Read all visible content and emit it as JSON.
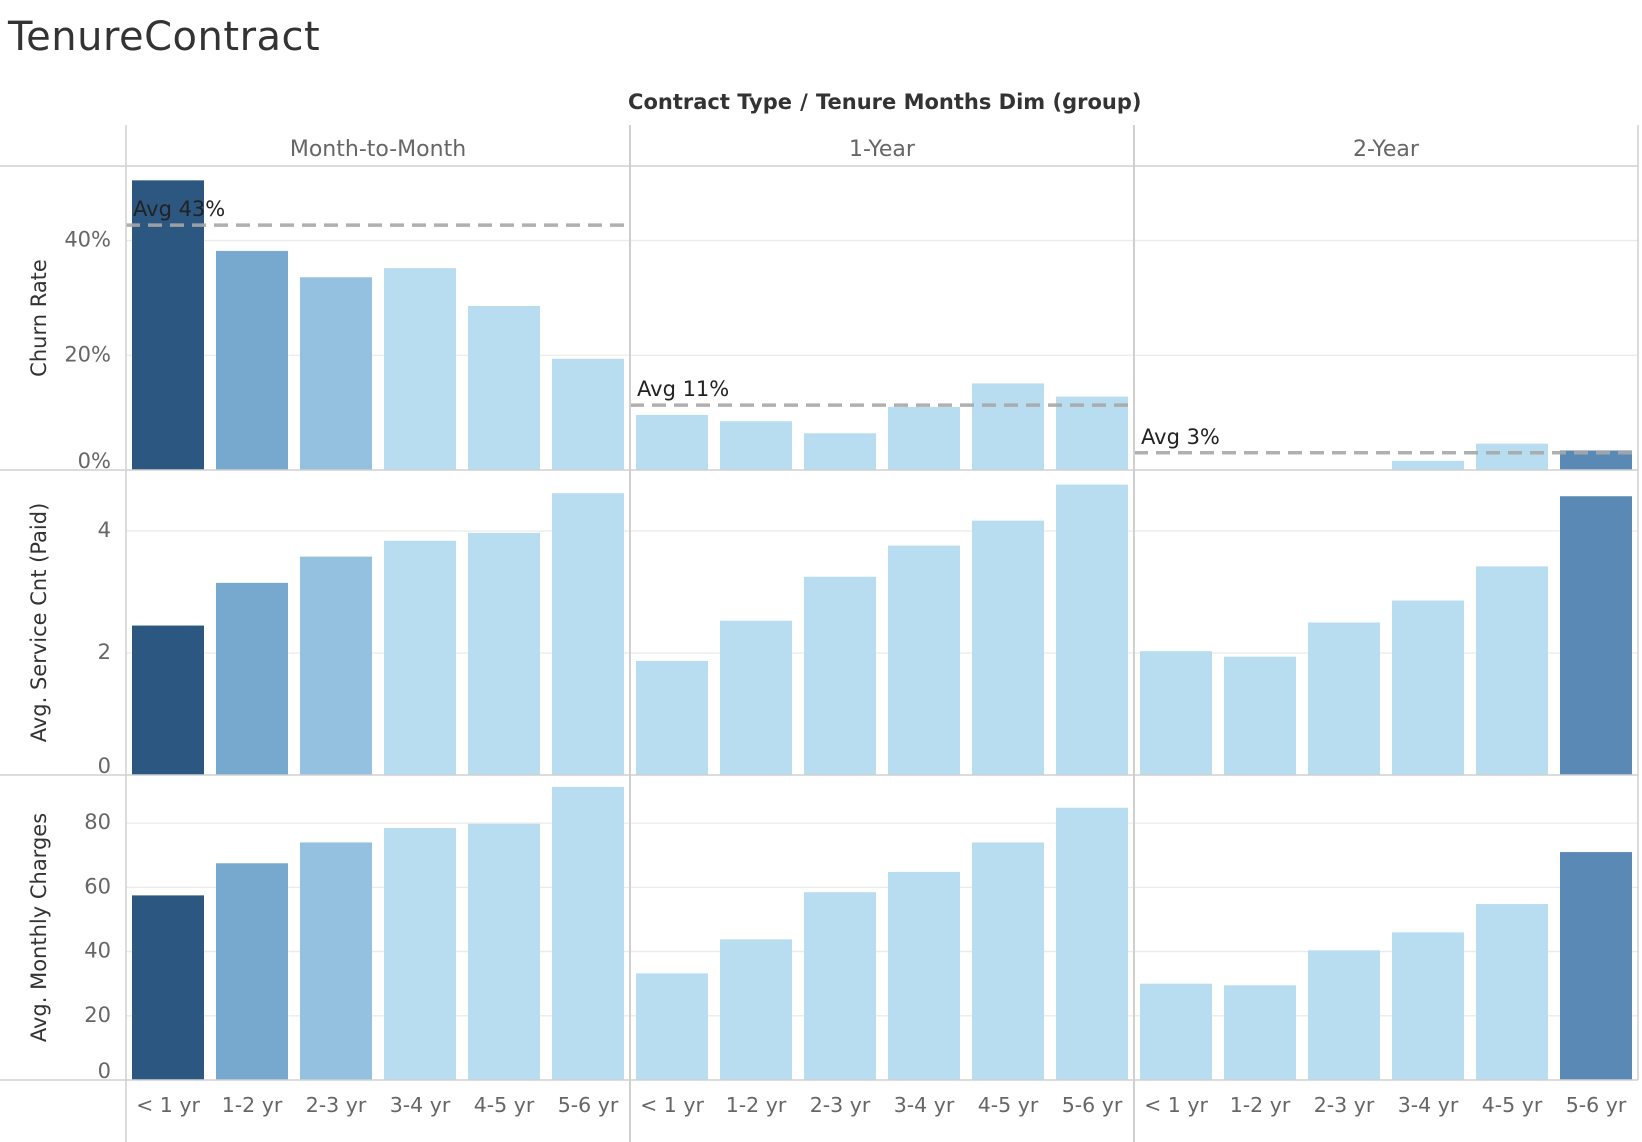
{
  "page_title": "TenureContract",
  "chart_data": {
    "type": "bar",
    "title": "TenureContract",
    "column_header": {
      "dim1": "Contract Type",
      "sep": "/",
      "dim2": "Tenure Months Dim (group)"
    },
    "panels": [
      "Month-to-Month",
      "1-Year",
      "2-Year"
    ],
    "categories": [
      "< 1 yr",
      "1-2 yr",
      "2-3 yr",
      "3-4 yr",
      "4-5 yr",
      "5-6 yr"
    ],
    "rows": [
      {
        "label": "Churn Rate",
        "ylim": [
          0,
          53
        ],
        "ticks": [
          0,
          20,
          40
        ],
        "tick_labels": [
          "0%",
          "20%",
          "40%"
        ],
        "values": [
          [
            50.5,
            38.2,
            33.6,
            35.2,
            28.6,
            19.4
          ],
          [
            9.6,
            8.5,
            6.4,
            11.0,
            15.1,
            12.8
          ],
          [
            0,
            0,
            0,
            1.6,
            4.6,
            3.4
          ]
        ],
        "reference_lines": [
          {
            "value": 42.7,
            "label": "Avg 43%"
          },
          {
            "value": 11.3,
            "label": "Avg 11%"
          },
          {
            "value": 3.0,
            "label": "Avg 3%"
          }
        ]
      },
      {
        "label": "Avg. Service Cnt (Paid)",
        "ylim": [
          0,
          5.0
        ],
        "ticks": [
          0,
          2,
          4
        ],
        "tick_labels": [
          "0",
          "2",
          "4"
        ],
        "values": [
          [
            2.45,
            3.15,
            3.58,
            3.84,
            3.97,
            4.62
          ],
          [
            1.87,
            2.53,
            3.25,
            3.76,
            4.17,
            4.76
          ],
          [
            2.03,
            1.94,
            2.5,
            2.86,
            3.42,
            4.57
          ]
        ]
      },
      {
        "label": "Avg. Monthly Charges",
        "ylim": [
          0,
          95
        ],
        "ticks": [
          0,
          20,
          40,
          60,
          80
        ],
        "tick_labels": [
          "0",
          "20",
          "40",
          "60",
          "80"
        ],
        "values": [
          [
            57.5,
            67.5,
            74.0,
            78.5,
            79.8,
            91.3
          ],
          [
            33.2,
            43.8,
            58.5,
            64.8,
            74.0,
            84.8
          ],
          [
            30.0,
            29.5,
            40.4,
            46.0,
            54.8,
            71.0
          ]
        ]
      }
    ],
    "colors": {
      "darkest": "#2c5781",
      "dark": "#5b89b6",
      "mid": "#77a8cd",
      "light": "#93c1df",
      "lightest": "#b8ddf0",
      "avg_line": "#a8a8a8",
      "grid": "#ebebeb",
      "divider": "#d0d0d0"
    },
    "bar_color_keys": [
      [
        "darkest",
        "mid",
        "light",
        "lightest",
        "lightest",
        "lightest"
      ],
      [
        "lightest",
        "lightest",
        "lightest",
        "lightest",
        "lightest",
        "lightest"
      ],
      [
        "lightest",
        "lightest",
        "lightest",
        "lightest",
        "lightest",
        "dark"
      ]
    ],
    "grid": true
  }
}
